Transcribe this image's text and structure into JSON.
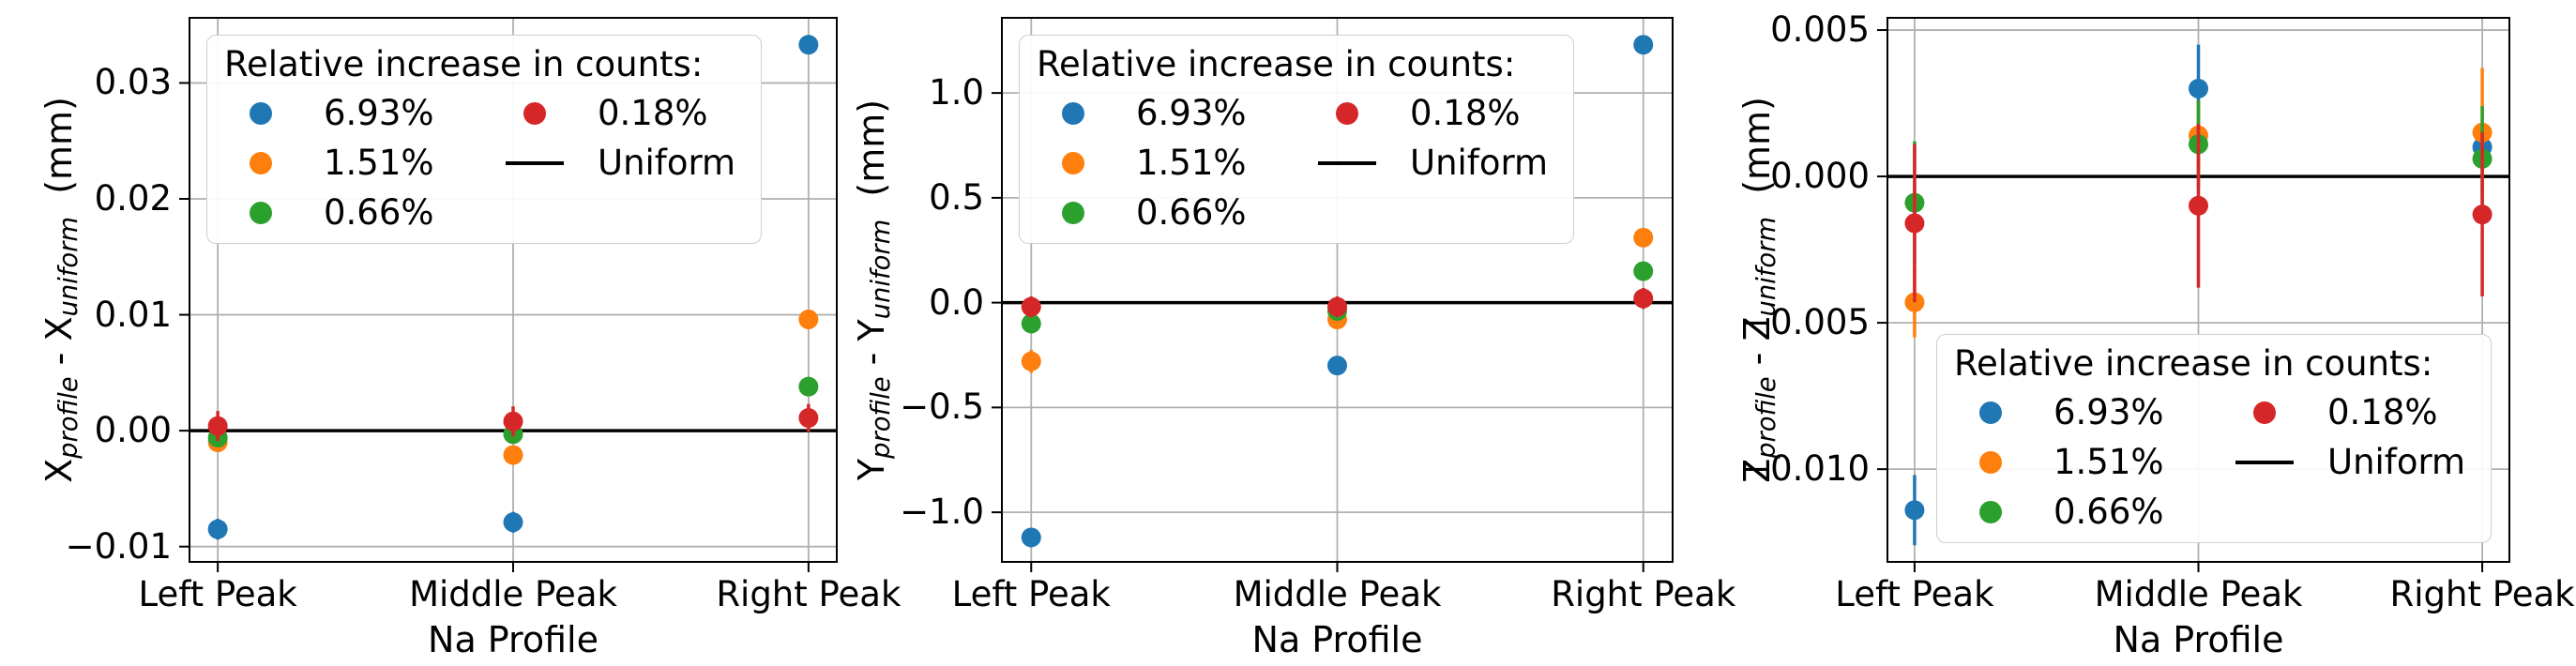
{
  "figure": {
    "background": "#ffffff"
  },
  "colors": {
    "blue": "#1f77b4",
    "orange": "#ff7f0e",
    "green": "#2ca02c",
    "red": "#d62728",
    "uniform_line": "#000000",
    "grid": "#b0b0b0",
    "spine": "#000000",
    "text": "#000000"
  },
  "legend": {
    "title": "Relative increase in counts:",
    "items": [
      {
        "label": "6.93%",
        "marker": "dot",
        "color": "#1f77b4"
      },
      {
        "label": "1.51%",
        "marker": "dot",
        "color": "#ff7f0e"
      },
      {
        "label": "0.66%",
        "marker": "dot",
        "color": "#2ca02c"
      },
      {
        "label": "0.18%",
        "marker": "dot",
        "color": "#d62728"
      },
      {
        "label": "Uniform",
        "marker": "line",
        "color": "#000000"
      }
    ]
  },
  "chart_data": {
    "type": "scatter",
    "categories": [
      "Left Peak",
      "Middle Peak",
      "Right Peak"
    ],
    "grid": true,
    "series_names": [
      "6.93%",
      "1.51%",
      "0.66%",
      "0.18%"
    ],
    "charts": [
      {
        "ylabel_text": "X_profile - X_uniform (mm)",
        "ylabel_parts": [
          {
            "t": "X"
          },
          {
            "t": "profile",
            "sub": true
          },
          {
            "t": " - X"
          },
          {
            "t": "uniform",
            "sub": true
          },
          {
            "t": "  (mm)"
          }
        ],
        "xlabel": "Na Profile",
        "ylim": [
          -0.0114,
          0.0357
        ],
        "yticks": [
          {
            "value": 0.03,
            "label": "0.03"
          },
          {
            "value": 0.02,
            "label": "0.02"
          },
          {
            "value": 0.01,
            "label": "0.01"
          },
          {
            "value": 0.0,
            "label": "0.00"
          },
          {
            "value": -0.01,
            "label": "−0.01"
          }
        ],
        "legend_position": "upper left",
        "uniform_line_y": 0,
        "series": [
          {
            "name": "6.93%",
            "color": "#1f77b4",
            "values": [
              -0.0085,
              -0.0079,
              0.0333
            ],
            "errors": [
              0.0009,
              0.0009,
              0.0006
            ]
          },
          {
            "name": "1.51%",
            "color": "#ff7f0e",
            "values": [
              -0.001,
              -0.0021,
              0.0096
            ],
            "errors": [
              0.0007,
              0.0008,
              0.0006
            ]
          },
          {
            "name": "0.66%",
            "color": "#2ca02c",
            "values": [
              -0.0006,
              -0.0003,
              0.0038
            ],
            "errors": [
              0.0006,
              0.0006,
              0.0006
            ]
          },
          {
            "name": "0.18%",
            "color": "#d62728",
            "values": [
              0.0004,
              0.0008,
              0.0011
            ],
            "errors": [
              0.0013,
              0.0013,
              0.0012
            ]
          }
        ]
      },
      {
        "ylabel_text": "Y_profile - Y_uniform (mm)",
        "ylabel_parts": [
          {
            "t": "Y"
          },
          {
            "t": "profile",
            "sub": true
          },
          {
            "t": " - Y"
          },
          {
            "t": "uniform",
            "sub": true
          },
          {
            "t": "  (mm)"
          }
        ],
        "xlabel": "Na Profile",
        "ylim": [
          -1.241,
          1.363
        ],
        "yticks": [
          {
            "value": 1.0,
            "label": "1.0"
          },
          {
            "value": 0.5,
            "label": "0.5"
          },
          {
            "value": 0.0,
            "label": "0.0"
          },
          {
            "value": -0.5,
            "label": "−0.5"
          },
          {
            "value": -1.0,
            "label": "−1.0"
          }
        ],
        "legend_position": "upper left",
        "uniform_line_y": 0,
        "series": [
          {
            "name": "6.93%",
            "color": "#1f77b4",
            "values": [
              -1.12,
              -0.3,
              1.23
            ],
            "errors": [
              0.04,
              0.04,
              0.03
            ]
          },
          {
            "name": "1.51%",
            "color": "#ff7f0e",
            "values": [
              -0.28,
              -0.08,
              0.31
            ],
            "errors": [
              0.055,
              0.035,
              0.03
            ]
          },
          {
            "name": "0.66%",
            "color": "#2ca02c",
            "values": [
              -0.1,
              -0.04,
              0.15
            ],
            "errors": [
              0.035,
              0.03,
              0.03
            ]
          },
          {
            "name": "0.18%",
            "color": "#d62728",
            "values": [
              -0.02,
              -0.02,
              0.02
            ],
            "errors": [
              0.05,
              0.05,
              0.05
            ]
          }
        ]
      },
      {
        "ylabel_text": "Z_profile - Z_uniform (mm)",
        "ylabel_parts": [
          {
            "t": "Z"
          },
          {
            "t": "profile",
            "sub": true
          },
          {
            "t": " - Z"
          },
          {
            "t": "uniform",
            "sub": true
          },
          {
            "t": "  (mm)"
          }
        ],
        "xlabel": "Na Profile",
        "ylim": [
          -0.0132,
          0.00545
        ],
        "yticks": [
          {
            "value": 0.005,
            "label": "0.005"
          },
          {
            "value": 0.0,
            "label": "0.000"
          },
          {
            "value": -0.005,
            "label": "−0.005"
          },
          {
            "value": -0.01,
            "label": "−0.010"
          }
        ],
        "legend_position": "lower right",
        "uniform_line_y": 0,
        "series": [
          {
            "name": "6.93%",
            "color": "#1f77b4",
            "values": [
              -0.0114,
              0.003,
              0.001
            ],
            "errors": [
              0.0012,
              0.0015,
              0.0008
            ]
          },
          {
            "name": "1.51%",
            "color": "#ff7f0e",
            "values": [
              -0.0043,
              0.0014,
              0.0015
            ],
            "errors": [
              0.0012,
              0.0012,
              0.0022
            ]
          },
          {
            "name": "0.66%",
            "color": "#2ca02c",
            "values": [
              -0.0009,
              0.0011,
              0.0006
            ],
            "errors": [
              0.0021,
              0.0015,
              0.0018
            ]
          },
          {
            "name": "0.18%",
            "color": "#d62728",
            "values": [
              -0.0016,
              -0.001,
              -0.0013
            ],
            "errors": [
              0.0027,
              0.0028,
              0.0028
            ]
          }
        ]
      }
    ]
  }
}
